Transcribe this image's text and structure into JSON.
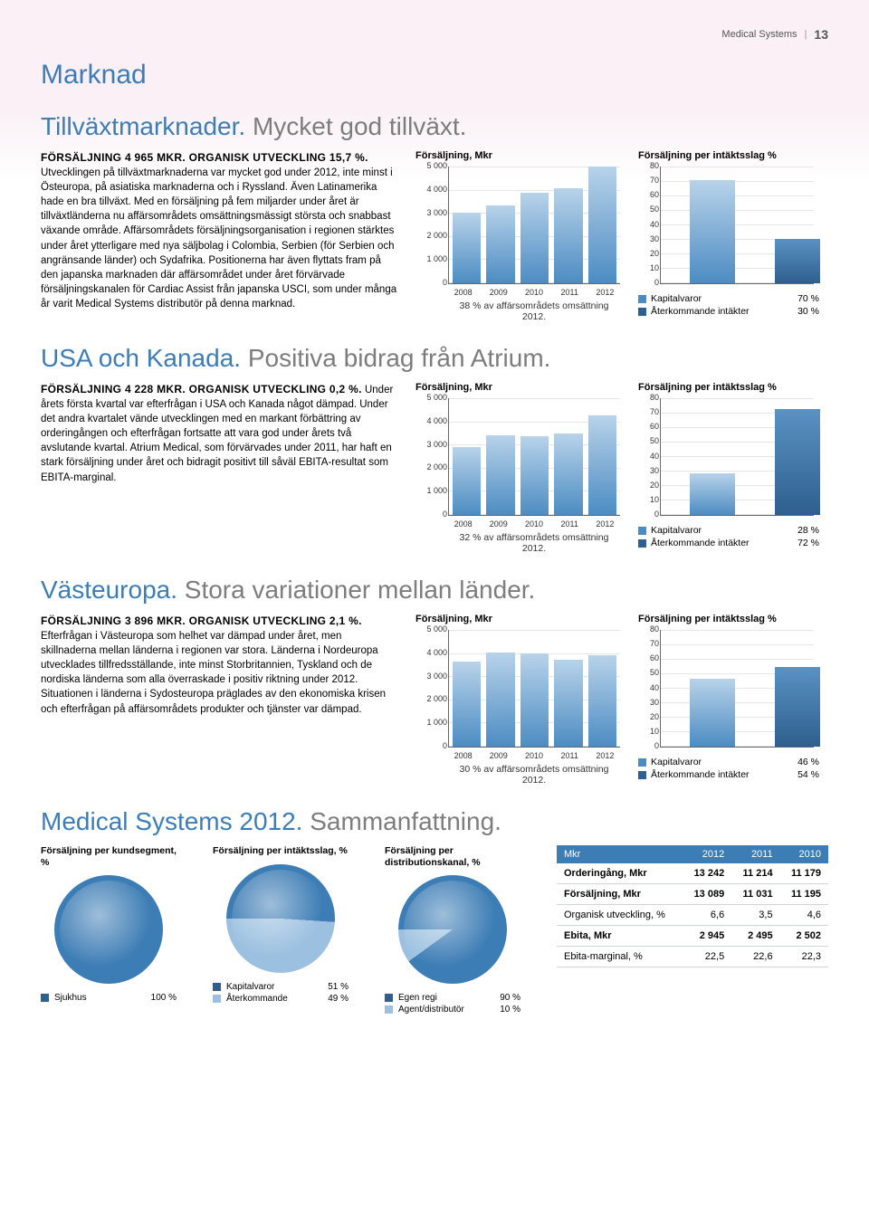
{
  "header": {
    "section": "Medical Systems",
    "page": "13"
  },
  "main_title": "Marknad",
  "regions": [
    {
      "title1": "Tillväxtmarknader.",
      "title2": "Mycket god tillväxt.",
      "lead": "FÖRSÄLJNING 4 965 MKR. ORGANISK UTVECKLING 15,7 %.",
      "body": "Utvecklingen på tillväxtmarknaderna var mycket god under 2012, inte minst i Östeuropa, på asiatiska marknaderna och i Ryssland. Även Latinamerika hade en bra tillväxt. Med en försäljning på fem miljarder under året är tillväxtländerna nu affärsområdets omsättningsmässigt största och snabbast växande område. Affärsområdets försäljningsorganisation i regionen stärktes under året ytterligare med nya säljbolag i Colombia, Serbien (för Serbien och angränsande länder) och Sydafrika. Positionerna har även flyttats fram på den japanska marknaden där affärsområdet under året förvärvade försäljningskanalen för Cardiac Assist från japanska USCI, som under många år varit Medical Systems distributör på denna marknad.",
      "sales_chart": {
        "title": "Försäljning, Mkr",
        "ymax": 5000,
        "ytick_step": 1000,
        "categories": [
          "2008",
          "2009",
          "2010",
          "2011",
          "2012"
        ],
        "values": [
          3000,
          3300,
          3850,
          4030,
          4965
        ],
        "bar_gradient_top": "#b8d3ea",
        "bar_gradient_bottom": "#4c8cc2",
        "grid_color": "#e6e6e6",
        "caption": "38 % av affärsområdets omsättning 2012."
      },
      "rev_chart": {
        "title": "Försäljning per intäktsslag %",
        "ymax": 80,
        "ytick_step": 10,
        "bars": [
          {
            "label": "Kapitalvaror",
            "value": 70,
            "color_top": "#b8d3ea",
            "color_bot": "#4c8cc2"
          },
          {
            "label": "Återkommande intäkter",
            "value": 30,
            "color_top": "#5a92c3",
            "color_bot": "#2e5f8e"
          }
        ],
        "pct_suffix": " %"
      }
    },
    {
      "title1": "USA och Kanada.",
      "title2": "Positiva bidrag från Atrium.",
      "lead": "FÖRSÄLJNING 4 228 MKR. ORGANISK UTVECKLING 0,2 %.",
      "body": "Under årets första kvartal var efterfrågan i USA och Kanada något dämpad. Under det andra kvartalet vände utvecklingen med en markant förbättring av orderingången och efterfrågan fortsatte att vara god under årets två avslutande kvartal. Atrium Medical, som förvärvades under 2011, har haft en stark försäljning under året och bidragit positivt till såväl EBITA-resultat som EBITA-marginal.",
      "sales_chart": {
        "title": "Försäljning, Mkr",
        "ymax": 5000,
        "ytick_step": 1000,
        "categories": [
          "2008",
          "2009",
          "2010",
          "2011",
          "2012"
        ],
        "values": [
          2900,
          3400,
          3350,
          3450,
          4228
        ],
        "bar_gradient_top": "#b8d3ea",
        "bar_gradient_bottom": "#4c8cc2",
        "grid_color": "#e6e6e6",
        "caption": "32 % av affärsområdets omsättning 2012."
      },
      "rev_chart": {
        "title": "Försäljning per intäktsslag %",
        "ymax": 80,
        "ytick_step": 10,
        "bars": [
          {
            "label": "Kapitalvaror",
            "value": 28,
            "color_top": "#b8d3ea",
            "color_bot": "#4c8cc2"
          },
          {
            "label": "Återkommande intäkter",
            "value": 72,
            "color_top": "#5a92c3",
            "color_bot": "#2e5f8e"
          }
        ],
        "pct_suffix": " %"
      }
    },
    {
      "title1": "Västeuropa.",
      "title2": "Stora variationer mellan länder.",
      "lead": "FÖRSÄLJNING 3 896 MKR. ORGANISK UTVECKLING 2,1 %.",
      "body": "Efterfrågan i Västeuropa som helhet var dämpad under året, men skillnaderna mellan länderna i regionen var stora. Länderna i Nordeuropa utvecklades tillfredsställande, inte minst Storbritannien, Tyskland och de nordiska länderna som alla överraskade i positiv riktning under 2012. Situationen i länderna i Sydosteuropa präglades av den ekonomiska krisen och efterfrågan på affärsområdets produkter och tjänster var dämpad.",
      "sales_chart": {
        "title": "Försäljning, Mkr",
        "ymax": 5000,
        "ytick_step": 1000,
        "categories": [
          "2008",
          "2009",
          "2010",
          "2011",
          "2012"
        ],
        "values": [
          3600,
          4000,
          3950,
          3700,
          3896
        ],
        "bar_gradient_top": "#b8d3ea",
        "bar_gradient_bottom": "#4c8cc2",
        "grid_color": "#e6e6e6",
        "caption": "30 % av affärsområdets omsättning 2012."
      },
      "rev_chart": {
        "title": "Försäljning per intäktsslag %",
        "ymax": 80,
        "ytick_step": 10,
        "bars": [
          {
            "label": "Kapitalvaror",
            "value": 46,
            "color_top": "#b8d3ea",
            "color_bot": "#4c8cc2"
          },
          {
            "label": "Återkommande intäkter",
            "value": 54,
            "color_top": "#5a92c3",
            "color_bot": "#2e5f8e"
          }
        ],
        "pct_suffix": " %"
      }
    }
  ],
  "summary": {
    "title1": "Medical Systems 2012.",
    "title2": "Sammanfattning.",
    "pies": [
      {
        "title": "Försäljning per kundsegment, %",
        "slices": [
          {
            "label": "Sjukhus",
            "value": 100,
            "color": "#3d7db5",
            "swatch": "#2e5f8e"
          }
        ]
      },
      {
        "title": "Försäljning per intäktsslag, %",
        "slices": [
          {
            "label": "Kapitalvaror",
            "value": 51,
            "color": "#3d7db5",
            "swatch": "#2e5f8e"
          },
          {
            "label": "Återkommande",
            "value": 49,
            "color": "#9cc1e0",
            "swatch": "#9cc1e0"
          }
        ]
      },
      {
        "title": "Försäljning per distributionskanal, %",
        "slices": [
          {
            "label": "Egen regi",
            "value": 90,
            "color": "#3d7db5",
            "swatch": "#2e5f8e"
          },
          {
            "label": "Agent/distributör",
            "value": 10,
            "color": "#9cc1e0",
            "swatch": "#9cc1e0"
          }
        ]
      }
    ],
    "table": {
      "header": [
        "Mkr",
        "2012",
        "2011",
        "2010"
      ],
      "rows": [
        {
          "bold": true,
          "cells": [
            "Orderingång, Mkr",
            "13 242",
            "11 214",
            "11 179"
          ]
        },
        {
          "bold": true,
          "cells": [
            "Försäljning, Mkr",
            "13 089",
            "11 031",
            "11 195"
          ]
        },
        {
          "bold": false,
          "cells": [
            "Organisk utveckling, %",
            "6,6",
            "3,5",
            "4,6"
          ]
        },
        {
          "bold": true,
          "cells": [
            "Ebita, Mkr",
            "2 945",
            "2 495",
            "2 502"
          ]
        },
        {
          "bold": false,
          "cells": [
            "Ebita-marginal, %",
            "22,5",
            "22,6",
            "22,3"
          ]
        }
      ],
      "header_bg": "#3d7db5",
      "header_fg": "#ffffff",
      "row_border": "#cfd7de"
    }
  },
  "style": {
    "blue": "#3d7db5",
    "gray_title": "#7d7d7d",
    "world_bg": "#f4e1eb",
    "fontsize_body": 11.5,
    "fontsize_h1": 30,
    "fontsize_h2": 28,
    "fontsize_chart_title": 11,
    "fontsize_axis": 9,
    "fontsize_legend": 10.5,
    "fontsize_table": 11
  }
}
